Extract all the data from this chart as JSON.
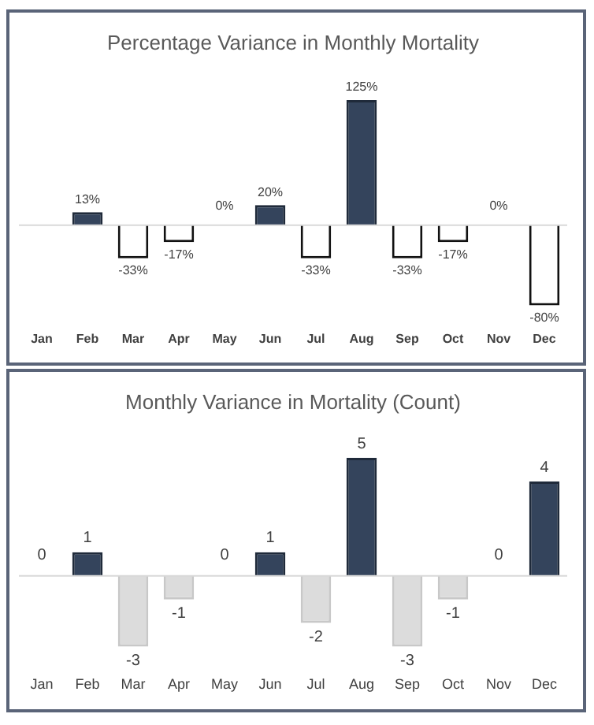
{
  "chart_data": [
    {
      "type": "bar",
      "title": "Percentage Variance in Monthly Mortality",
      "categories": [
        "Jan",
        "Feb",
        "Mar",
        "Apr",
        "May",
        "Jun",
        "Jul",
        "Aug",
        "Sep",
        "Oct",
        "Nov",
        "Dec"
      ],
      "values": [
        null,
        13,
        -33,
        -17,
        0,
        20,
        -33,
        125,
        -33,
        -17,
        0,
        -80
      ],
      "value_labels": [
        null,
        "13%",
        "-33%",
        "-17%",
        "0%",
        "20%",
        "-33%",
        "125%",
        "-33%",
        "-17%",
        "0%",
        "-80%"
      ],
      "colors": [
        "#34445c",
        "#34445c",
        "#ffffff",
        "#ffffff",
        "#34445c",
        "#34445c",
        "#ffffff",
        "#34445c",
        "#ffffff",
        "#ffffff",
        "#34445c",
        "#ffffff"
      ],
      "grid": false,
      "legend": false
    },
    {
      "type": "bar",
      "title": "Monthly Variance in Mortality (Count)",
      "categories": [
        "Jan",
        "Feb",
        "Mar",
        "Apr",
        "May",
        "Jun",
        "Jul",
        "Aug",
        "Sep",
        "Oct",
        "Nov",
        "Dec"
      ],
      "values": [
        0,
        1,
        -3,
        -1,
        0,
        1,
        -2,
        5,
        -3,
        -1,
        0,
        4
      ],
      "colors": [
        "#34445c",
        "#34445c",
        "#dcdcdc",
        "#dcdcdc",
        "#34445c",
        "#34445c",
        "#dcdcdc",
        "#34445c",
        "#dcdcdc",
        "#dcdcdc",
        "#34445c",
        "#34445c"
      ],
      "data_labels": true,
      "grid": false,
      "legend": false
    }
  ]
}
